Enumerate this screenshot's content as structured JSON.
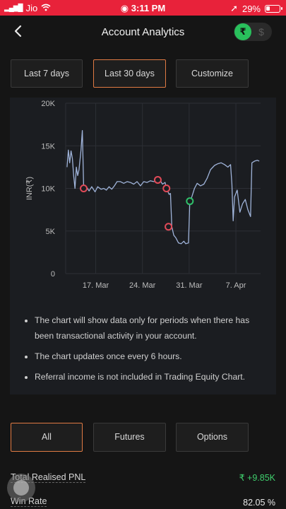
{
  "status_bar": {
    "carrier": "Jio",
    "time": "3:11 PM",
    "battery": "29%"
  },
  "header": {
    "title": "Account Analytics",
    "currency_active": "₹",
    "currency_inactive": "$"
  },
  "range_tabs": [
    {
      "label": "Last 7 days",
      "active": false
    },
    {
      "label": "Last 30 days",
      "active": true
    },
    {
      "label": "Customize",
      "active": false
    }
  ],
  "chart_data": {
    "type": "line",
    "ylabel": "INR(₹)",
    "ylim": [
      0,
      20000
    ],
    "y_ticks": [
      "0",
      "5K",
      "10K",
      "15K",
      "20K"
    ],
    "x_ticks": [
      {
        "label": "17. Mar",
        "day": 17
      },
      {
        "label": "24. Mar",
        "day": 24
      },
      {
        "label": "31. Mar",
        "day": 31
      },
      {
        "label": "7. Apr",
        "day": 38
      }
    ],
    "xlim": [
      12.5,
      41.7
    ],
    "grid": true,
    "line_color": "#9fb3d9",
    "series": [
      {
        "points": [
          [
            12.7,
            12500
          ],
          [
            12.9,
            14500
          ],
          [
            13.1,
            13000
          ],
          [
            13.3,
            14400
          ],
          [
            13.5,
            13500
          ],
          [
            13.7,
            11500
          ],
          [
            13.9,
            10000
          ],
          [
            14.1,
            12500
          ],
          [
            14.3,
            11500
          ],
          [
            14.5,
            12200
          ],
          [
            14.8,
            14500
          ],
          [
            15.0,
            16800
          ],
          [
            15.2,
            10000
          ],
          [
            15.7,
            10100
          ],
          [
            16.0,
            9700
          ],
          [
            16.4,
            10200
          ],
          [
            16.9,
            9600
          ],
          [
            17.3,
            10200
          ],
          [
            17.8,
            9900
          ],
          [
            18.2,
            10000
          ],
          [
            18.6,
            9800
          ],
          [
            19.0,
            10200
          ],
          [
            19.4,
            9900
          ],
          [
            19.8,
            10300
          ],
          [
            20.2,
            10800
          ],
          [
            20.7,
            10800
          ],
          [
            21.2,
            10600
          ],
          [
            21.7,
            10800
          ],
          [
            22.2,
            10700
          ],
          [
            22.7,
            10500
          ],
          [
            23.2,
            10800
          ],
          [
            23.7,
            10300
          ],
          [
            24.2,
            10800
          ],
          [
            24.7,
            10700
          ],
          [
            25.2,
            10900
          ],
          [
            25.7,
            10800
          ],
          [
            26.2,
            10900
          ],
          [
            26.6,
            11000
          ],
          [
            27.0,
            10500
          ],
          [
            27.4,
            10700
          ],
          [
            27.6,
            10000
          ],
          [
            28.0,
            9300
          ],
          [
            28.2,
            9400
          ],
          [
            28.4,
            5500
          ],
          [
            28.7,
            4500
          ],
          [
            29.0,
            4200
          ],
          [
            29.4,
            3600
          ],
          [
            29.8,
            3500
          ],
          [
            30.2,
            3800
          ],
          [
            30.5,
            3500
          ],
          [
            30.9,
            3600
          ],
          [
            31.1,
            8500
          ],
          [
            31.4,
            9000
          ],
          [
            31.8,
            10000
          ],
          [
            32.2,
            10600
          ],
          [
            32.7,
            10300
          ],
          [
            33.2,
            10500
          ],
          [
            33.7,
            11200
          ],
          [
            34.2,
            12200
          ],
          [
            34.8,
            12700
          ],
          [
            35.3,
            12900
          ],
          [
            35.8,
            13000
          ],
          [
            36.3,
            12800
          ],
          [
            36.8,
            12500
          ],
          [
            37.2,
            12800
          ],
          [
            37.4,
            10500
          ],
          [
            37.6,
            6200
          ],
          [
            37.8,
            9000
          ],
          [
            38.2,
            9800
          ],
          [
            38.6,
            7200
          ],
          [
            39.0,
            8200
          ],
          [
            39.4,
            8700
          ],
          [
            39.8,
            7500
          ],
          [
            40.2,
            6700
          ],
          [
            40.4,
            13000
          ],
          [
            40.8,
            13200
          ],
          [
            41.2,
            13300
          ],
          [
            41.5,
            13200
          ]
        ]
      }
    ],
    "markers": [
      {
        "x": 15.2,
        "y": 10000,
        "kind": "sell",
        "color": "#e04a58"
      },
      {
        "x": 26.3,
        "y": 11000,
        "kind": "sell",
        "color": "#e04a58"
      },
      {
        "x": 27.6,
        "y": 10000,
        "kind": "sell",
        "color": "#e04a58"
      },
      {
        "x": 27.9,
        "y": 5500,
        "kind": "sell",
        "color": "#e04a58"
      },
      {
        "x": 31.1,
        "y": 8500,
        "kind": "buy",
        "color": "#2fc06a"
      }
    ]
  },
  "notes": [
    "The chart will show data only for periods when there has been transactional activity in your account.",
    "The chart updates once every 6 hours.",
    "Referral income is not included in Trading Equity Chart."
  ],
  "segment_tabs": [
    {
      "label": "All",
      "active": true
    },
    {
      "label": "Futures",
      "active": false
    },
    {
      "label": "Options",
      "active": false
    }
  ],
  "stats": {
    "pnl_label": "Total Realised PNL",
    "pnl_value": "₹ +9.85K",
    "win_rate_label": "Win Rate",
    "win_rate_value": "82.05 %"
  }
}
